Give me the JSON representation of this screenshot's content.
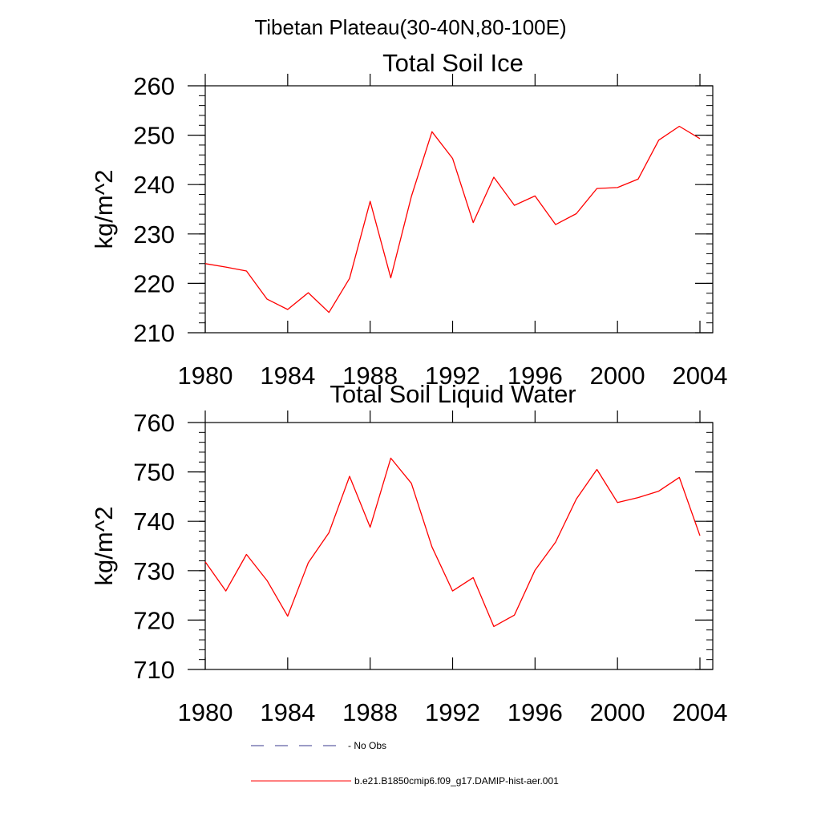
{
  "figure": {
    "title": "Tibetan Plateau(30-40N,80-100E)"
  },
  "legend": {
    "entries": [
      {
        "label": "- No Obs",
        "color": "#3a3a8c",
        "style": "dashed"
      },
      {
        "label": "b.e21.B1850cmip6.f09_g17.DAMIP-hist-aer.001",
        "color": "#ff0000",
        "style": "solid"
      }
    ]
  },
  "chart_data": [
    {
      "type": "line",
      "title": "Total Soil Ice",
      "ylabel": "kg/m^2",
      "xlabel": "",
      "xlim": [
        1980,
        2004
      ],
      "ylim": [
        210,
        260
      ],
      "xticks": [
        1980,
        1984,
        1988,
        1992,
        1996,
        2000,
        2004
      ],
      "yticks": [
        210,
        220,
        230,
        240,
        250,
        260
      ],
      "x": [
        1980,
        1981,
        1982,
        1983,
        1984,
        1985,
        1986,
        1987,
        1988,
        1989,
        1990,
        1991,
        1992,
        1993,
        1994,
        1995,
        1996,
        1997,
        1998,
        1999,
        2000,
        2001,
        2002,
        2003,
        2004
      ],
      "series": [
        {
          "name": "b.e21.B1850cmip6.f09_g17.DAMIP-hist-aer.001",
          "color": "#ff0000",
          "values": [
            224.0,
            223.3,
            222.5,
            216.8,
            214.7,
            218.1,
            214.1,
            221.0,
            236.6,
            221.1,
            237.6,
            250.7,
            245.3,
            232.3,
            241.5,
            235.8,
            237.7,
            231.9,
            234.1,
            239.2,
            239.4,
            241.1,
            249.0,
            251.8,
            249.3
          ]
        }
      ]
    },
    {
      "type": "line",
      "title": "Total Soil Liquid Water",
      "ylabel": "kg/m^2",
      "xlabel": "",
      "xlim": [
        1980,
        2004
      ],
      "ylim": [
        710,
        760
      ],
      "xticks": [
        1980,
        1984,
        1988,
        1992,
        1996,
        2000,
        2004
      ],
      "yticks": [
        710,
        720,
        730,
        740,
        750,
        760
      ],
      "x": [
        1980,
        1981,
        1982,
        1983,
        1984,
        1985,
        1986,
        1987,
        1988,
        1989,
        1990,
        1991,
        1992,
        1993,
        1994,
        1995,
        1996,
        1997,
        1998,
        1999,
        2000,
        2001,
        2002,
        2003,
        2004
      ],
      "series": [
        {
          "name": "b.e21.B1850cmip6.f09_g17.DAMIP-hist-aer.001",
          "color": "#ff0000",
          "values": [
            731.8,
            725.9,
            733.3,
            728.0,
            720.8,
            731.6,
            737.7,
            749.1,
            738.8,
            752.8,
            747.7,
            734.8,
            725.9,
            728.6,
            718.7,
            721.0,
            730.1,
            735.8,
            744.5,
            750.5,
            743.8,
            744.8,
            746.1,
            748.9,
            737.1
          ]
        }
      ]
    }
  ]
}
